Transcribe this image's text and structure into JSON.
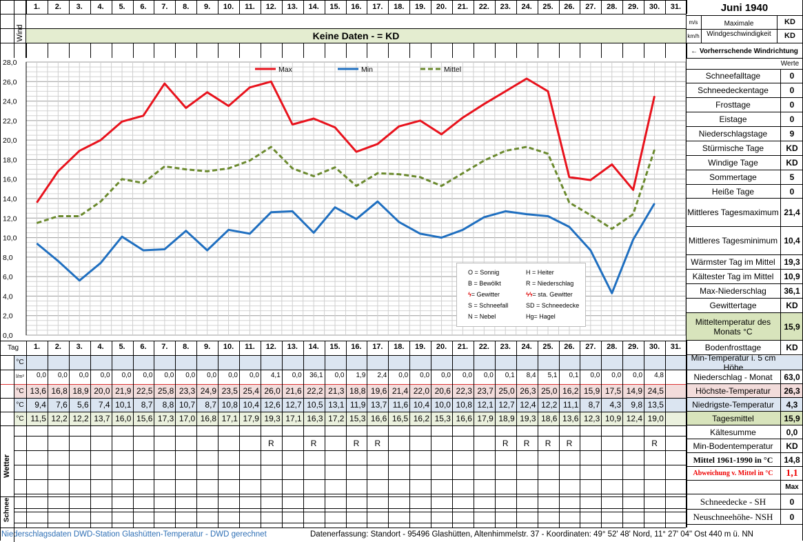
{
  "header": {
    "title": "Juni 1940",
    "wind_label": "Wind",
    "wind_units": [
      "m/s",
      "km/h"
    ],
    "wind_max_label": "Maximale Windgeschwindigkeit",
    "wind_max_values": [
      "KD",
      "KD"
    ],
    "no_data_text": "Keine Daten -  = KD",
    "prevailing_wind": "← Vorherrschende Windrichtung",
    "werte_label": "Werte",
    "day_row_label": "Tag",
    "days": [
      "1.",
      "2.",
      "3.",
      "4.",
      "5.",
      "6.",
      "7.",
      "8.",
      "9.",
      "10.",
      "11.",
      "12.",
      "13.",
      "14.",
      "15.",
      "16.",
      "17.",
      "18.",
      "19.",
      "20.",
      "21.",
      "22.",
      "23.",
      "24.",
      "25.",
      "26.",
      "27.",
      "28.",
      "29.",
      "30.",
      "31."
    ]
  },
  "chart_data": {
    "type": "line",
    "title": "",
    "xlabel": "",
    "ylabel": "",
    "ylim": [
      0,
      28
    ],
    "yticks": [
      "0,0",
      "2,0",
      "4,0",
      "6,0",
      "8,0",
      "10,0",
      "12,0",
      "14,0",
      "16,0",
      "18,0",
      "20,0",
      "22,0",
      "24,0",
      "26,0",
      "28,0"
    ],
    "grid": true,
    "legend_position": "top",
    "categories": [
      "1.",
      "2.",
      "3.",
      "4.",
      "5.",
      "6.",
      "7.",
      "8.",
      "9.",
      "10.",
      "11.",
      "12.",
      "13.",
      "14.",
      "15.",
      "16.",
      "17.",
      "18.",
      "19.",
      "20.",
      "21.",
      "22.",
      "23.",
      "24.",
      "25.",
      "26.",
      "27.",
      "28.",
      "29.",
      "30."
    ],
    "series": [
      {
        "name": "Max",
        "color": "#e8121c",
        "style": "solid",
        "values": [
          13.6,
          16.8,
          18.9,
          20.0,
          21.9,
          22.5,
          25.8,
          23.3,
          24.9,
          23.5,
          25.4,
          26.0,
          21.6,
          22.2,
          21.3,
          18.8,
          19.6,
          21.4,
          22.0,
          20.6,
          22.3,
          23.7,
          25.0,
          26.3,
          25.0,
          16.2,
          15.9,
          17.5,
          14.9,
          24.5
        ]
      },
      {
        "name": "Min",
        "color": "#1f6fc0",
        "style": "solid",
        "values": [
          9.4,
          7.6,
          5.6,
          7.4,
          10.1,
          8.7,
          8.8,
          10.7,
          8.7,
          10.8,
          10.4,
          12.6,
          12.7,
          10.5,
          13.1,
          11.9,
          13.7,
          11.6,
          10.4,
          10.0,
          10.8,
          12.1,
          12.7,
          12.4,
          12.2,
          11.1,
          8.7,
          4.3,
          9.8,
          13.5
        ]
      },
      {
        "name": "Mittel",
        "color": "#6b8a2e",
        "style": "dashed",
        "values": [
          11.5,
          12.2,
          12.2,
          13.7,
          16.0,
          15.6,
          17.3,
          17.0,
          16.8,
          17.1,
          17.9,
          19.3,
          17.1,
          16.3,
          17.2,
          15.3,
          16.6,
          16.5,
          16.2,
          15.3,
          16.6,
          17.9,
          18.9,
          19.3,
          18.6,
          13.6,
          12.3,
          10.9,
          12.4,
          19.0
        ]
      }
    ]
  },
  "weather_legend": [
    [
      "O = Sonnig",
      "H = Heiter"
    ],
    [
      "B = Bewölkt",
      "R = Niederschlag"
    ],
    [
      "= Gewitter",
      "= sta. Gewitter"
    ],
    [
      "S = Schneefall",
      "SD = Schneedecke"
    ],
    [
      "N = Nebel",
      "Hg= Hagel"
    ]
  ],
  "table": {
    "unit_c": "°C",
    "unit_precip": "l/m²",
    "wetter_label": "Wetter",
    "schnee_label": "Schnee",
    "precip": [
      "0,0",
      "0,0",
      "0,0",
      "0,0",
      "0,0",
      "0,0",
      "0,0",
      "0,0",
      "0,0",
      "0,0",
      "0,0",
      "4,1",
      "0,0",
      "36,1",
      "0,0",
      "1,9",
      "2,4",
      "0,0",
      "0,0",
      "0,0",
      "0,0",
      "0,0",
      "0,1",
      "8,4",
      "5,1",
      "0,1",
      "0,0",
      "0,0",
      "0,0",
      "4,8"
    ],
    "max": [
      "13,6",
      "16,8",
      "18,9",
      "20,0",
      "21,9",
      "22,5",
      "25,8",
      "23,3",
      "24,9",
      "23,5",
      "25,4",
      "26,0",
      "21,6",
      "22,2",
      "21,3",
      "18,8",
      "19,6",
      "21,4",
      "22,0",
      "20,6",
      "22,3",
      "23,7",
      "25,0",
      "26,3",
      "25,0",
      "16,2",
      "15,9",
      "17,5",
      "14,9",
      "24,5"
    ],
    "min": [
      "9,4",
      "7,6",
      "5,6",
      "7,4",
      "10,1",
      "8,7",
      "8,8",
      "10,7",
      "8,7",
      "10,8",
      "10,4",
      "12,6",
      "12,7",
      "10,5",
      "13,1",
      "11,9",
      "13,7",
      "11,6",
      "10,4",
      "10,0",
      "10,8",
      "12,1",
      "12,7",
      "12,4",
      "12,2",
      "11,1",
      "8,7",
      "4,3",
      "9,8",
      "13,5"
    ],
    "mean": [
      "11,5",
      "12,2",
      "12,2",
      "13,7",
      "16,0",
      "15,6",
      "17,3",
      "17,0",
      "16,8",
      "17,1",
      "17,9",
      "19,3",
      "17,1",
      "16,3",
      "17,2",
      "15,3",
      "16,6",
      "16,5",
      "16,2",
      "15,3",
      "16,6",
      "17,9",
      "18,9",
      "19,3",
      "18,6",
      "13,6",
      "12,3",
      "10,9",
      "12,4",
      "19,0"
    ],
    "weather": [
      "",
      "",
      "",
      "",
      "",
      "",
      "",
      "",
      "",
      "",
      "",
      "R",
      "",
      "R",
      "",
      "R",
      "R",
      "",
      "",
      "",
      "",
      "",
      "R",
      "R",
      "R",
      "R",
      "",
      "",
      "",
      "R"
    ]
  },
  "stats": [
    {
      "label": "Schneefalltage",
      "value": "0"
    },
    {
      "label": "Schneedeckentage",
      "value": "0"
    },
    {
      "label": "Frosttage",
      "value": "0"
    },
    {
      "label": "Eistage",
      "value": "0"
    },
    {
      "label": "Niederschlagstage",
      "value": "9"
    },
    {
      "label": "Stürmische Tage",
      "value": "KD"
    },
    {
      "label": "Windige Tage",
      "value": "KD"
    },
    {
      "label": "Sommertage",
      "value": "5"
    },
    {
      "label": "Heiße Tage",
      "value": "0"
    },
    {
      "label": "Mittleres Tagesmaximum",
      "value": "21,4"
    },
    {
      "label": "Mittleres Tagesminimum",
      "value": "10,4"
    },
    {
      "label": "Wärmster Tag im Mittel",
      "value": "19,3"
    },
    {
      "label": "Kältester Tag im Mittel",
      "value": "10,9"
    },
    {
      "label": "Max-Niederschlag",
      "value": "36,1"
    },
    {
      "label": "Gewittertage",
      "value": "KD"
    },
    {
      "label": "Mitteltemperatur des Monats °C",
      "value": "15,9"
    },
    {
      "label": "Bodenfrosttage",
      "value": "KD"
    }
  ],
  "stats2": [
    {
      "label": "Min-Temperatur i. 5 cm Höhe",
      "value": ""
    },
    {
      "label": "Niederschlag - Monat",
      "value": "63,0"
    },
    {
      "label": "Höchste-Temperatur",
      "value": "26,3"
    },
    {
      "label": "Niedrigste-Temperatur",
      "value": "4,3"
    },
    {
      "label": "Tagesmittel",
      "value": "15,9"
    },
    {
      "label": "Kältesumme",
      "value": "0,0"
    },
    {
      "label": "Min-Bodentemperatur",
      "value": "KD"
    },
    {
      "label": "Mittel 1961-1990 in °C",
      "value": "14,8"
    },
    {
      "label": "Abweichung v. Mittel in °C",
      "value": "1,1"
    },
    {
      "label": "",
      "value": "Max"
    },
    {
      "label": "Schneedecke -   SH",
      "value": "0"
    },
    {
      "label": "Neuschneehöhe- NSH",
      "value": "0"
    }
  ],
  "footer": {
    "left": "Niederschlagsdaten DWD-Station Glashütten-Temperatur -  DWD gerechnet",
    "right": "Datenerfassung:  Standort -  95496  Glashütten, Altenhimmelstr. 37 - Koordinaten:  49° 52' 48' Nord,   11° 27' 04\" Ost   440 m ü. NN"
  }
}
